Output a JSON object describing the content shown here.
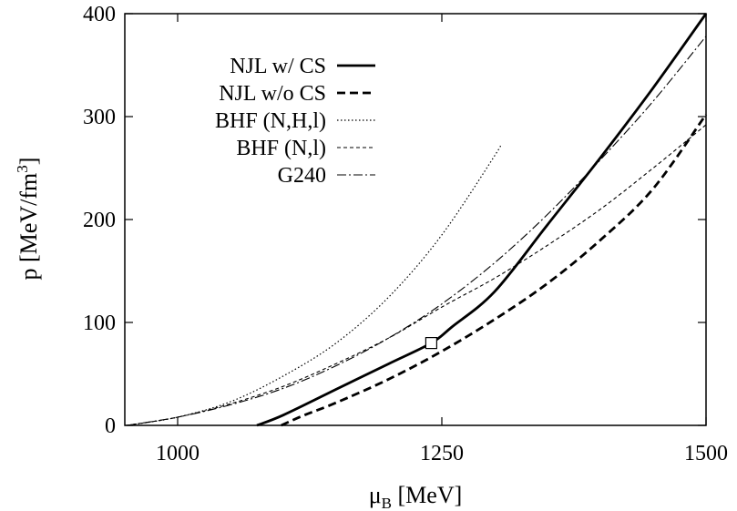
{
  "chart_data": {
    "type": "line",
    "xlabel": {
      "main": "μ",
      "sub": "B",
      "unit": " [MeV]"
    },
    "ylabel": {
      "main": "p [MeV/fm",
      "sup": "3",
      "end": "]"
    },
    "xlim": [
      950,
      1500
    ],
    "ylim": [
      0,
      400
    ],
    "xticks": [
      1000,
      1250,
      1500
    ],
    "yticks": [
      0,
      100,
      200,
      300,
      400
    ],
    "grid": false,
    "legend_position": "top-left",
    "series": [
      {
        "name": "NJL w/ CS",
        "style": "solid-thick",
        "x": [
          1075,
          1100,
          1150,
          1200,
          1240,
          1260,
          1300,
          1350,
          1400,
          1450,
          1500
        ],
        "y": [
          0,
          10,
          35,
          60,
          80,
          96,
          130,
          195,
          260,
          328,
          400
        ]
      },
      {
        "name": "NJL w/o CS",
        "style": "dashed-thick",
        "x": [
          1098,
          1120,
          1150,
          1200,
          1250,
          1300,
          1350,
          1400,
          1450,
          1500
        ],
        "y": [
          0,
          10,
          22,
          45,
          72,
          103,
          138,
          180,
          230,
          302
        ]
      },
      {
        "name": "BHF (N,H,l)",
        "style": "dotted",
        "x": [
          952,
          1000,
          1050,
          1100,
          1150,
          1200,
          1250,
          1300,
          1305
        ],
        "y": [
          0,
          8,
          23,
          48,
          80,
          125,
          185,
          262,
          272
        ]
      },
      {
        "name": "BHF (N,l)",
        "style": "dashed-fine",
        "x": [
          952,
          1000,
          1050,
          1100,
          1150,
          1200,
          1250,
          1300,
          1350,
          1400,
          1450,
          1500
        ],
        "y": [
          0,
          8,
          21,
          38,
          60,
          85,
          115,
          143,
          175,
          210,
          250,
          292
        ]
      },
      {
        "name": "G240",
        "style": "dashdot",
        "x": [
          952,
          1000,
          1050,
          1100,
          1150,
          1200,
          1250,
          1300,
          1350,
          1400,
          1450,
          1500
        ],
        "y": [
          0,
          8,
          20,
          36,
          58,
          85,
          118,
          158,
          205,
          258,
          315,
          378
        ]
      }
    ],
    "markers": [
      {
        "label": "open-square",
        "x": 1240,
        "y": 80
      }
    ]
  }
}
